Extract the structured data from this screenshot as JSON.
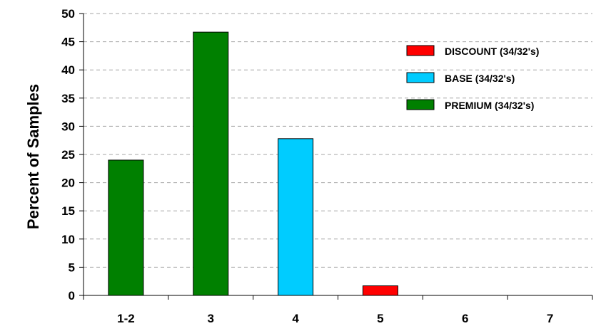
{
  "chart_data": {
    "type": "bar",
    "title": "",
    "xlabel": "",
    "ylabel": "Percent of Samples",
    "ylim": [
      0,
      50
    ],
    "yticks": [
      0,
      5,
      10,
      15,
      20,
      25,
      30,
      35,
      40,
      45,
      50
    ],
    "categories": [
      "1-2",
      "3",
      "4",
      "5",
      "6",
      "7"
    ],
    "grid": true,
    "legend_position": "top-right",
    "series": [
      {
        "name": "DISCOUNT (34/32's)",
        "color": "#ff0000",
        "values": [
          0,
          0,
          0,
          1.7,
          0,
          0
        ]
      },
      {
        "name": "BASE (34/32's)",
        "color": "#00ccff",
        "values": [
          0,
          0,
          27.8,
          0,
          0,
          0
        ]
      },
      {
        "name": "PREMIUM (34/32's)",
        "color": "#008000",
        "values": [
          24,
          46.7,
          0,
          0,
          0,
          0
        ]
      }
    ]
  }
}
